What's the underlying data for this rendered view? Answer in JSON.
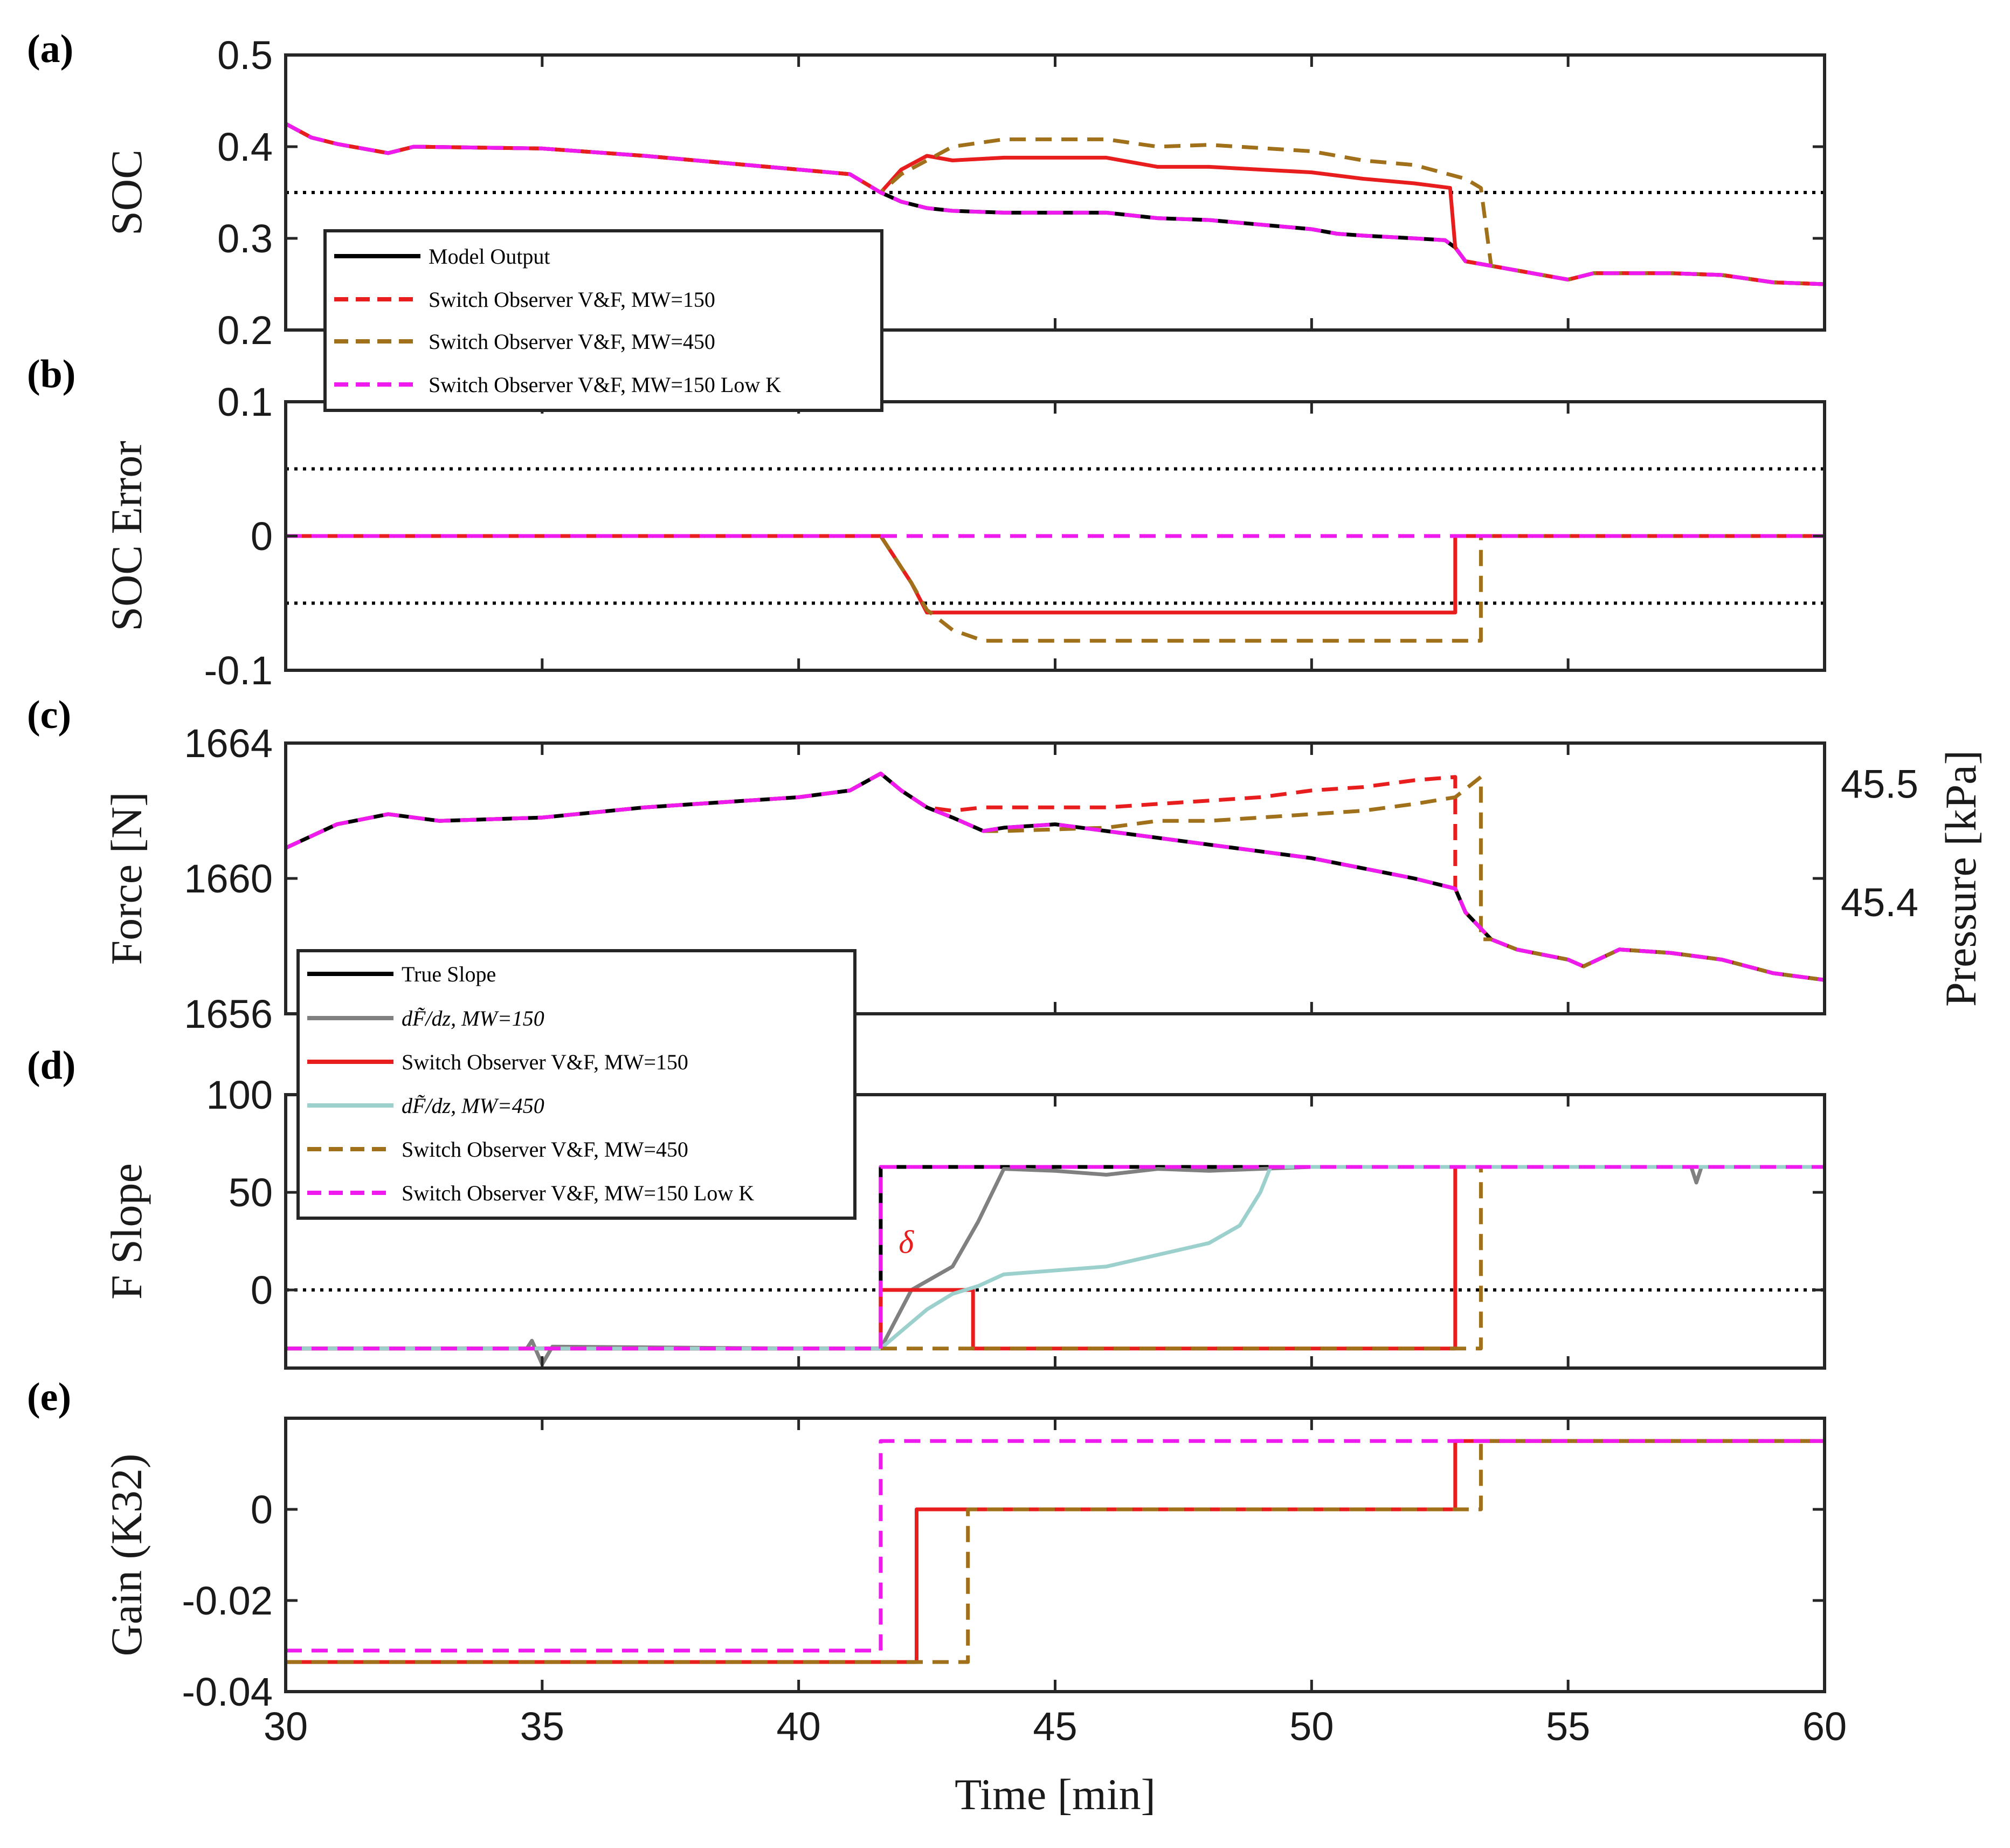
{
  "chart_data": [
    {
      "panel": "(a)",
      "type": "line",
      "ylabel": "SOC",
      "xlim": [
        30,
        60
      ],
      "ylim": [
        0.2,
        0.5
      ],
      "yticks": [
        "0.2",
        "0.3",
        "0.4",
        "0.5"
      ],
      "ytick_values": [
        0.2,
        0.3,
        0.4,
        0.5
      ],
      "threshold": 0.35,
      "legend": [
        "Model Output",
        "Switch Observer V&F, MW=150",
        "Switch Observer V&F, MW=450",
        "Switch Observer V&F, MW=150 Low K"
      ],
      "series": [
        {
          "name": "Model Output",
          "color": "#000000",
          "dash": "solid",
          "x": [
            30,
            30.5,
            31,
            32,
            32.5,
            35,
            37,
            39,
            40,
            41,
            41.6,
            42,
            42.5,
            43,
            44,
            46,
            47,
            48,
            50,
            50.5,
            51,
            52,
            52.6,
            52.8,
            53,
            54,
            55,
            55.5,
            57,
            58,
            59,
            60
          ],
          "y": [
            0.425,
            0.41,
            0.403,
            0.393,
            0.4,
            0.398,
            0.39,
            0.38,
            0.375,
            0.37,
            0.35,
            0.34,
            0.333,
            0.33,
            0.328,
            0.328,
            0.322,
            0.32,
            0.31,
            0.305,
            0.303,
            0.3,
            0.298,
            0.29,
            0.275,
            0.265,
            0.255,
            0.262,
            0.262,
            0.26,
            0.252,
            0.25
          ]
        },
        {
          "name": "Switch Observer V&F, MW=150",
          "color": "#e81e1e",
          "dash": "solid",
          "x": [
            30,
            30.5,
            31,
            32,
            32.5,
            35,
            37,
            39,
            40,
            41,
            41.6,
            42,
            42.5,
            43,
            44,
            46,
            47,
            48,
            50,
            51,
            52,
            52.7,
            52.8,
            53,
            54,
            55,
            55.5,
            57,
            58,
            59,
            60
          ],
          "y": [
            0.425,
            0.41,
            0.403,
            0.393,
            0.4,
            0.398,
            0.39,
            0.38,
            0.375,
            0.37,
            0.35,
            0.375,
            0.39,
            0.385,
            0.388,
            0.388,
            0.378,
            0.378,
            0.372,
            0.365,
            0.36,
            0.355,
            0.29,
            0.275,
            0.265,
            0.255,
            0.262,
            0.262,
            0.26,
            0.252,
            0.25
          ]
        },
        {
          "name": "Switch Observer V&F, MW=450",
          "color": "#a0701a",
          "dash": "dashed",
          "x": [
            30,
            30.5,
            31,
            32,
            32.5,
            35,
            37,
            39,
            40,
            41,
            41.6,
            42,
            42.5,
            43,
            44,
            46,
            47,
            48,
            50,
            51,
            52,
            53,
            53.3,
            53.5,
            54,
            55,
            55.5,
            57,
            58,
            59,
            60
          ],
          "y": [
            0.425,
            0.41,
            0.403,
            0.393,
            0.4,
            0.398,
            0.39,
            0.38,
            0.375,
            0.37,
            0.35,
            0.37,
            0.385,
            0.4,
            0.408,
            0.408,
            0.4,
            0.402,
            0.395,
            0.385,
            0.38,
            0.365,
            0.355,
            0.27,
            0.265,
            0.255,
            0.262,
            0.262,
            0.26,
            0.252,
            0.25
          ]
        },
        {
          "name": "Switch Observer V&F, MW=150 Low K",
          "color": "#ee1aee",
          "dash": "dashed",
          "x": [
            30,
            30.5,
            31,
            32,
            32.5,
            35,
            37,
            39,
            40,
            41,
            41.6,
            42,
            42.5,
            43,
            44,
            46,
            47,
            48,
            50,
            50.5,
            51,
            52,
            52.6,
            52.8,
            53,
            54,
            55,
            55.5,
            57,
            58,
            59,
            60
          ],
          "y": [
            0.425,
            0.41,
            0.403,
            0.393,
            0.4,
            0.398,
            0.39,
            0.38,
            0.375,
            0.37,
            0.35,
            0.34,
            0.333,
            0.33,
            0.328,
            0.328,
            0.322,
            0.32,
            0.31,
            0.305,
            0.303,
            0.3,
            0.298,
            0.29,
            0.275,
            0.265,
            0.255,
            0.262,
            0.262,
            0.26,
            0.252,
            0.25
          ]
        }
      ]
    },
    {
      "panel": "(b)",
      "type": "line",
      "ylabel": "SOC Error",
      "xlim": [
        30,
        60
      ],
      "ylim": [
        -0.1,
        0.1
      ],
      "yticks": [
        "-0.1",
        "0",
        "0.1"
      ],
      "ytick_values": [
        -0.1,
        0,
        0.1
      ],
      "thresholds": [
        0.05,
        -0.05
      ],
      "series": [
        {
          "name": "MW=150",
          "color": "#e81e1e",
          "dash": "solid",
          "x": [
            30,
            41.6,
            42.2,
            42.5,
            52.8,
            52.8,
            60
          ],
          "y": [
            0,
            0,
            -0.035,
            -0.057,
            -0.057,
            0,
            0
          ]
        },
        {
          "name": "MW=450",
          "color": "#a0701a",
          "dash": "dashed",
          "x": [
            30,
            41.6,
            42.2,
            42.5,
            43,
            43.6,
            53.3,
            53.3,
            60
          ],
          "y": [
            0,
            0,
            -0.035,
            -0.055,
            -0.07,
            -0.078,
            -0.078,
            0,
            0
          ]
        },
        {
          "name": "MW=150 Low K",
          "color": "#ee1aee",
          "dash": "dashed",
          "x": [
            30,
            60
          ],
          "y": [
            0,
            0
          ]
        }
      ]
    },
    {
      "panel": "(c)",
      "type": "line",
      "ylabel": "Force [N]",
      "ylabel_right": "Pressure [kPa]",
      "xlim": [
        30,
        60
      ],
      "ylim": [
        1656,
        1664
      ],
      "yticks": [
        "1656",
        "1660",
        "1664"
      ],
      "ytick_values": [
        1656,
        1660,
        1664
      ],
      "yticks_right": [
        "45.4",
        "45.5"
      ],
      "ytick_right_values": [
        1659.3,
        1662.8
      ],
      "series": [
        {
          "name": "Model Output",
          "color": "#000000",
          "dash": "solid",
          "x": [
            30,
            31,
            32,
            33,
            35,
            37,
            38,
            40,
            41,
            41.6,
            42,
            42.5,
            43,
            43.6,
            44,
            45,
            46,
            47,
            48,
            49,
            50,
            51,
            52,
            52.8,
            53,
            53.5,
            54,
            55,
            55.3,
            56,
            57,
            58,
            59,
            60
          ],
          "y": [
            1660.9,
            1661.6,
            1661.9,
            1661.7,
            1661.8,
            1662.1,
            1662.2,
            1662.4,
            1662.6,
            1663.1,
            1662.6,
            1662.1,
            1661.8,
            1661.4,
            1661.5,
            1661.6,
            1661.4,
            1661.2,
            1661.0,
            1660.8,
            1660.6,
            1660.3,
            1660.0,
            1659.7,
            1659.0,
            1658.2,
            1657.9,
            1657.6,
            1657.4,
            1657.9,
            1657.8,
            1657.6,
            1657.2,
            1657.0
          ]
        },
        {
          "name": "Switch Observer V&F, MW=150",
          "color": "#e81e1e",
          "dash": "dashed",
          "x": [
            30,
            31,
            32,
            33,
            35,
            37,
            38,
            40,
            41,
            41.6,
            42,
            42.5,
            43,
            43.6,
            44,
            46,
            47,
            48,
            49,
            50,
            51,
            52,
            52.8,
            52.8,
            53,
            53.5,
            54,
            55,
            55.3,
            56,
            57,
            58,
            59,
            60
          ],
          "y": [
            1660.9,
            1661.6,
            1661.9,
            1661.7,
            1661.8,
            1662.1,
            1662.2,
            1662.4,
            1662.6,
            1663.1,
            1662.6,
            1662.1,
            1662.0,
            1662.1,
            1662.1,
            1662.1,
            1662.2,
            1662.3,
            1662.4,
            1662.6,
            1662.7,
            1662.9,
            1663.0,
            1659.7,
            1659.0,
            1658.2,
            1657.9,
            1657.6,
            1657.4,
            1657.9,
            1657.8,
            1657.6,
            1657.2,
            1657.0
          ]
        },
        {
          "name": "Switch Observer V&F, MW=450",
          "color": "#a0701a",
          "dash": "dashed",
          "x": [
            30,
            31,
            32,
            33,
            35,
            37,
            38,
            40,
            41,
            41.6,
            42,
            42.5,
            43,
            43.6,
            44,
            46,
            47,
            48,
            49,
            50,
            51,
            52,
            52.8,
            53.3,
            53.3,
            53.5,
            54,
            55,
            55.3,
            56,
            57,
            58,
            59,
            60
          ],
          "y": [
            1660.9,
            1661.6,
            1661.9,
            1661.7,
            1661.8,
            1662.1,
            1662.2,
            1662.4,
            1662.6,
            1663.1,
            1662.6,
            1662.1,
            1661.8,
            1661.4,
            1661.4,
            1661.5,
            1661.7,
            1661.7,
            1661.8,
            1661.9,
            1662.0,
            1662.2,
            1662.4,
            1663.0,
            1658.2,
            1658.2,
            1657.9,
            1657.6,
            1657.4,
            1657.9,
            1657.8,
            1657.6,
            1657.2,
            1657.0
          ]
        },
        {
          "name": "Switch Observer V&F, MW=150 Low K",
          "color": "#ee1aee",
          "dash": "dashed",
          "x": [
            30,
            31,
            32,
            33,
            35,
            37,
            38,
            40,
            41,
            41.6,
            42,
            42.5,
            43,
            43.6,
            44,
            45,
            46,
            47,
            48,
            49,
            50,
            51,
            52,
            52.8,
            53,
            53.5,
            54,
            55,
            55.3,
            56,
            57,
            58,
            59,
            60
          ],
          "y": [
            1660.9,
            1661.6,
            1661.9,
            1661.7,
            1661.8,
            1662.1,
            1662.2,
            1662.4,
            1662.6,
            1663.1,
            1662.6,
            1662.1,
            1661.8,
            1661.4,
            1661.5,
            1661.6,
            1661.4,
            1661.2,
            1661.0,
            1660.8,
            1660.6,
            1660.3,
            1660.0,
            1659.7,
            1659.0,
            1658.2,
            1657.9,
            1657.6,
            1657.4,
            1657.9,
            1657.8,
            1657.6,
            1657.2,
            1657.0
          ]
        }
      ]
    },
    {
      "panel": "(d)",
      "type": "line",
      "ylabel": "F Slope",
      "xlim": [
        30,
        60
      ],
      "ylim": [
        -40,
        100
      ],
      "yticks": [
        "0",
        "50",
        "100"
      ],
      "ytick_values": [
        0,
        50,
        100
      ],
      "threshold": 0,
      "annotation": "δ",
      "legend": [
        "True Slope",
        "dF̃/dz, MW=150",
        "Switch Observer V&F, MW=150",
        "dF̃/dz, MW=450",
        "Switch Observer V&F, MW=450",
        "Switch Observer V&F, MW=150 Low K"
      ],
      "series": [
        {
          "name": "True Slope",
          "color": "#000000",
          "dash": "solid",
          "x": [
            30,
            41.6,
            41.6,
            60
          ],
          "y": [
            -30,
            -30,
            63,
            63
          ]
        },
        {
          "name": "dF/dz, MW=150",
          "color": "#808080",
          "dash": "solid",
          "x": [
            30,
            34.7,
            34.8,
            35.0,
            35.2,
            40,
            41.6,
            42.2,
            43,
            43.5,
            44,
            45,
            46,
            47,
            48,
            49,
            50,
            57.4,
            57.5,
            57.6,
            60
          ],
          "y": [
            -30,
            -30,
            -26,
            -38,
            -29,
            -30,
            -30,
            0,
            12,
            35,
            62,
            61,
            59,
            62,
            61,
            62,
            63,
            63,
            55,
            63,
            63
          ]
        },
        {
          "name": "Switch Observer V&F, MW=150",
          "color": "#e81e1e",
          "dash": "solid",
          "x": [
            30,
            41.6,
            41.6,
            43.4,
            43.4,
            52.8,
            52.8,
            60
          ],
          "y": [
            -30,
            -30,
            0,
            0,
            -30,
            -30,
            63,
            63
          ]
        },
        {
          "name": "dF/dz, MW=450",
          "color": "#9cd0cc",
          "dash": "solid",
          "x": [
            30,
            41.6,
            42.5,
            43,
            43.5,
            44,
            46,
            47,
            48,
            48.6,
            49,
            49.2,
            60
          ],
          "y": [
            -30,
            -30,
            -10,
            -2,
            2,
            8,
            12,
            18,
            24,
            33,
            50,
            63,
            63
          ]
        },
        {
          "name": "Switch Observer V&F, MW=450",
          "color": "#a0701a",
          "dash": "dashed",
          "x": [
            30,
            53.3,
            53.3,
            60
          ],
          "y": [
            -30,
            -30,
            63,
            63
          ]
        },
        {
          "name": "Switch Observer V&F, MW=150 Low K",
          "color": "#ee1aee",
          "dash": "dashed",
          "x": [
            30,
            41.6,
            41.6,
            60
          ],
          "y": [
            -30,
            -30,
            63,
            63
          ]
        }
      ]
    },
    {
      "panel": "(e)",
      "type": "line",
      "ylabel": "Gain (K32)",
      "xlabel": "Time [min]",
      "xlim": [
        30,
        60
      ],
      "ylim": [
        -0.04,
        0.02
      ],
      "yticks": [
        "-0.04",
        "-0.02",
        "0"
      ],
      "ytick_values": [
        -0.04,
        -0.02,
        0
      ],
      "xticks": [
        "30",
        "35",
        "40",
        "45",
        "50",
        "55",
        "60"
      ],
      "xtick_values": [
        30,
        35,
        40,
        45,
        50,
        55,
        60
      ],
      "series": [
        {
          "name": "MW=150",
          "color": "#e81e1e",
          "dash": "solid",
          "x": [
            30,
            42.3,
            42.3,
            52.8,
            52.8,
            60
          ],
          "y": [
            -0.0335,
            -0.0335,
            0,
            0,
            0.015,
            0.015
          ]
        },
        {
          "name": "MW=450",
          "color": "#a0701a",
          "dash": "dashed",
          "x": [
            30,
            43.3,
            43.3,
            53.3,
            53.3,
            60
          ],
          "y": [
            -0.0335,
            -0.0335,
            0,
            0,
            0.015,
            0.015
          ]
        },
        {
          "name": "MW=150 Low K",
          "color": "#ee1aee",
          "dash": "dashed",
          "x": [
            30,
            41.6,
            41.6,
            60
          ],
          "y": [
            -0.031,
            -0.031,
            0.015,
            0.015
          ]
        }
      ]
    }
  ]
}
